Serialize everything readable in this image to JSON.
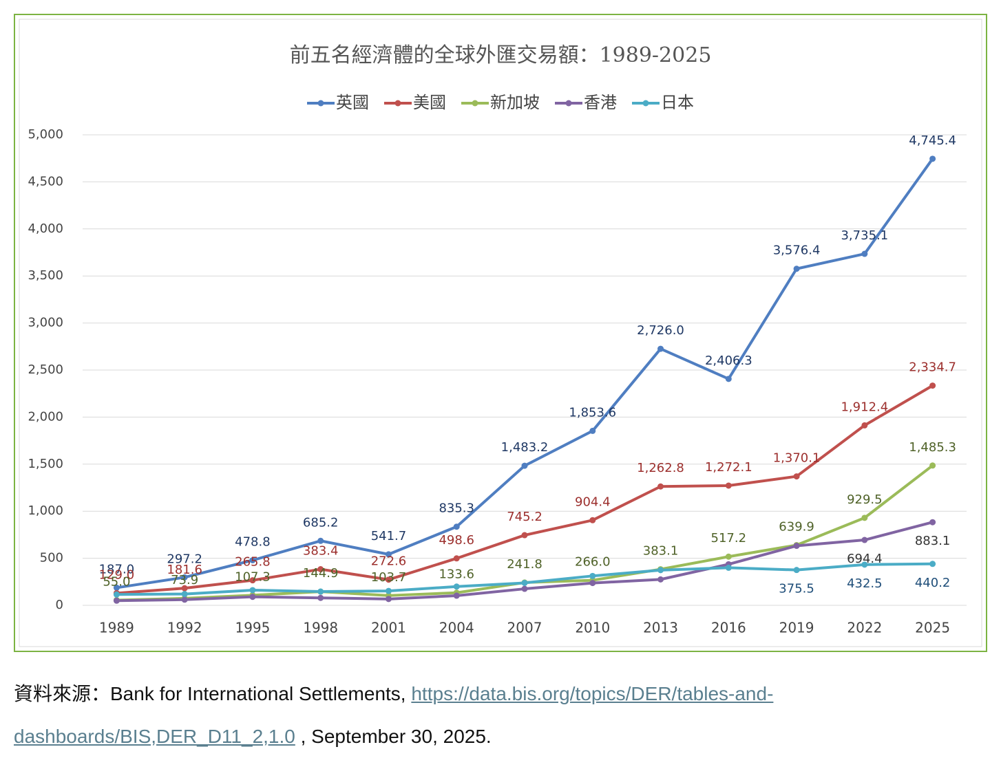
{
  "chart_data": {
    "type": "line",
    "title": "前五名經濟體的全球外匯交易額：1989-2025",
    "categories": [
      "1989",
      "1992",
      "1995",
      "1998",
      "2001",
      "2004",
      "2007",
      "2010",
      "2013",
      "2016",
      "2019",
      "2022",
      "2025"
    ],
    "ylim": [
      0,
      5000
    ],
    "yticks": [
      0,
      500,
      {
        "value": 1000,
        "label": "1,000"
      },
      {
        "value": 1500,
        "label": "1,500"
      },
      {
        "value": 2000,
        "label": "2,000"
      },
      {
        "value": 2500,
        "label": "2,500"
      },
      {
        "value": 3000,
        "label": "3,000"
      },
      {
        "value": 3500,
        "label": "3,500"
      },
      {
        "value": 4000,
        "label": "4,000"
      },
      {
        "value": 4500,
        "label": "4,500"
      },
      {
        "value": 5000,
        "label": "5,000"
      }
    ],
    "grid": true,
    "legend": "top",
    "series": [
      {
        "name": "英國",
        "color": "#4f7ec1",
        "label_color": "#1f3864",
        "values": [
          187.0,
          297.2,
          478.8,
          685.2,
          541.7,
          835.3,
          1483.2,
          1853.6,
          2726.0,
          2406.3,
          3576.4,
          3735.1,
          4745.4
        ],
        "value_labels": [
          "187.0",
          "297.2",
          "478.8",
          "685.2",
          "541.7",
          "835.3",
          "1,483.2",
          "1,853.6",
          "2,726.0",
          "2,406.3",
          "3,576.4",
          "3,735.1",
          "4,745.4"
        ]
      },
      {
        "name": "美國",
        "color": "#c0504d",
        "label_color": "#9c2f2d",
        "values": [
          129.0,
          181.6,
          265.8,
          383.4,
          272.6,
          498.6,
          745.2,
          904.4,
          1262.8,
          1272.1,
          1370.1,
          1912.4,
          2334.7
        ],
        "value_labels": [
          "129.0",
          "181.6",
          "265.8",
          "383.4",
          "272.6",
          "498.6",
          "745.2",
          "904.4",
          "1,262.8",
          "1,272.1",
          "1,370.1",
          "1,912.4",
          "2,334.7"
        ]
      },
      {
        "name": "新加坡",
        "color": "#9bbb59",
        "label_color": "#4f6228",
        "values": [
          55.0,
          73.9,
          107.3,
          144.9,
          103.7,
          133.6,
          241.8,
          266.0,
          383.1,
          517.2,
          639.9,
          929.5,
          1485.3
        ],
        "value_labels": [
          "55.0",
          "73.9",
          "107.3",
          "144.9",
          "103.7",
          "133.6",
          "241.8",
          "266.0",
          "383.1",
          "517.2",
          "639.9",
          "929.5",
          "1,485.3"
        ]
      },
      {
        "name": "香港",
        "color": "#8064a2",
        "label_color": "#333333",
        "values": [
          49,
          60,
          90,
          79,
          67,
          102,
          175,
          237,
          275,
          436,
          632,
          694.4,
          883.1
        ],
        "value_labels": [
          null,
          null,
          null,
          null,
          null,
          null,
          null,
          null,
          null,
          null,
          null,
          "694.4",
          "883.1"
        ]
      },
      {
        "name": "日本",
        "color": "#4bacc6",
        "label_color": "#1f4e79",
        "values": [
          115,
          120,
          161,
          146,
          153,
          199,
          238,
          312,
          374,
          399,
          375.5,
          432.5,
          440.2
        ],
        "value_labels": [
          null,
          null,
          null,
          null,
          null,
          null,
          null,
          null,
          null,
          null,
          "375.5",
          "432.5",
          "440.2"
        ]
      }
    ]
  },
  "source": {
    "prefix": "資料來源：Bank for International Settlements, ",
    "link": "https://data.bis.org/topics/DER/tables-and-dashboards/BIS,DER_D11_2,1.0",
    "suffix": " , September 30, 2025."
  }
}
